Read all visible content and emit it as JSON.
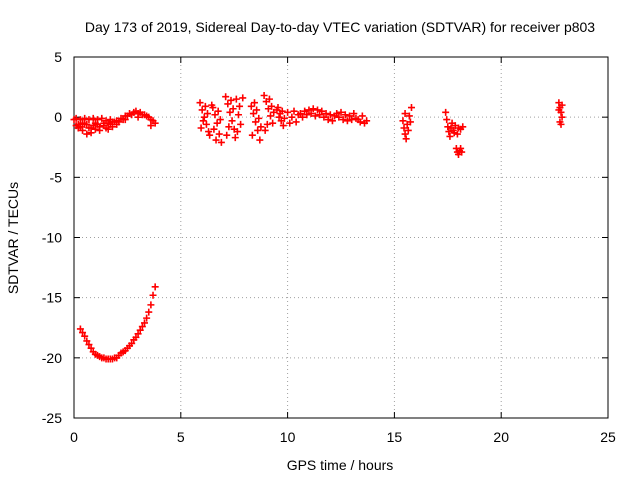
{
  "chart_data": {
    "type": "scatter",
    "title": "Day 173 of 2019, Sidereal Day-to-day VTEC variation (SDTVAR) for receiver p803",
    "xlabel": "GPS time / hours",
    "ylabel": "SDTVAR / TECUs",
    "xlim": [
      0,
      25
    ],
    "ylim": [
      -25,
      5
    ],
    "xticks": [
      0,
      5,
      10,
      15,
      20,
      25
    ],
    "yticks": [
      5,
      0,
      -5,
      -10,
      -15,
      -20,
      -25
    ],
    "grid": true,
    "marker": "plus",
    "series_color": "#ff0000",
    "series": [
      {
        "name": "SDTVAR",
        "points": [
          [
            0.0,
            -0.2
          ],
          [
            0.2,
            -0.6
          ],
          [
            0.4,
            -1.1
          ],
          [
            0.6,
            -1.4
          ],
          [
            0.8,
            -1.3
          ],
          [
            1.0,
            -1.0
          ],
          [
            1.2,
            -0.8
          ],
          [
            1.4,
            -0.7
          ],
          [
            1.6,
            -0.5
          ],
          [
            1.8,
            -0.4
          ],
          [
            2.0,
            -0.3
          ],
          [
            2.2,
            -0.1
          ],
          [
            2.4,
            0.1
          ],
          [
            2.6,
            0.3
          ],
          [
            2.8,
            0.4
          ],
          [
            3.0,
            0.3
          ],
          [
            3.2,
            0.2
          ],
          [
            3.4,
            0.1
          ],
          [
            3.6,
            -0.2
          ],
          [
            3.8,
            -0.5
          ],
          [
            0.1,
            -0.1
          ],
          [
            0.3,
            -0.2
          ],
          [
            0.5,
            -0.1
          ],
          [
            0.7,
            -0.2
          ],
          [
            0.9,
            -0.1
          ],
          [
            1.1,
            -0.2
          ],
          [
            1.3,
            -0.1
          ],
          [
            1.5,
            -0.3
          ],
          [
            1.7,
            -0.2
          ],
          [
            1.9,
            -0.4
          ],
          [
            0.1,
            -0.7
          ],
          [
            0.3,
            -0.8
          ],
          [
            0.5,
            -0.6
          ],
          [
            0.7,
            -0.9
          ],
          [
            0.9,
            -0.7
          ],
          [
            1.1,
            -0.6
          ],
          [
            1.4,
            -0.5
          ],
          [
            1.6,
            -1.0
          ],
          [
            1.8,
            -0.8
          ],
          [
            2.0,
            -0.6
          ],
          [
            2.1,
            -0.4
          ],
          [
            2.3,
            -0.2
          ],
          [
            2.5,
            0.1
          ],
          [
            2.7,
            0.2
          ],
          [
            2.9,
            0.5
          ],
          [
            3.1,
            0.4
          ],
          [
            3.3,
            0.2
          ],
          [
            3.5,
            0.0
          ],
          [
            3.7,
            -0.3
          ],
          [
            3.6,
            -0.7
          ],
          [
            0.2,
            -0.9
          ],
          [
            0.4,
            -0.5
          ],
          [
            0.6,
            -0.6
          ],
          [
            0.8,
            -0.9
          ],
          [
            1.0,
            -0.5
          ],
          [
            1.2,
            -1.1
          ],
          [
            1.5,
            -0.9
          ],
          [
            1.7,
            -0.6
          ],
          [
            2.4,
            -0.2
          ],
          [
            3.0,
            0.0
          ],
          [
            0.3,
            -17.6
          ],
          [
            0.4,
            -17.9
          ],
          [
            0.5,
            -18.2
          ],
          [
            0.6,
            -18.6
          ],
          [
            0.7,
            -18.9
          ],
          [
            0.8,
            -19.2
          ],
          [
            0.9,
            -19.5
          ],
          [
            1.0,
            -19.7
          ],
          [
            1.1,
            -19.8
          ],
          [
            1.2,
            -19.9
          ],
          [
            1.3,
            -20.0
          ],
          [
            1.4,
            -20.0
          ],
          [
            1.5,
            -20.1
          ],
          [
            1.6,
            -20.1
          ],
          [
            1.7,
            -20.1
          ],
          [
            1.8,
            -20.1
          ],
          [
            1.9,
            -20.0
          ],
          [
            2.0,
            -20.0
          ],
          [
            2.1,
            -19.8
          ],
          [
            2.2,
            -19.6
          ],
          [
            2.3,
            -19.5
          ],
          [
            2.4,
            -19.4
          ],
          [
            2.5,
            -19.2
          ],
          [
            2.6,
            -19.0
          ],
          [
            2.7,
            -18.8
          ],
          [
            2.8,
            -18.5
          ],
          [
            2.9,
            -18.3
          ],
          [
            3.0,
            -18.0
          ],
          [
            3.1,
            -17.7
          ],
          [
            3.2,
            -17.4
          ],
          [
            3.3,
            -17.1
          ],
          [
            3.4,
            -16.7
          ],
          [
            3.5,
            -16.2
          ],
          [
            3.6,
            -15.6
          ],
          [
            3.7,
            -14.8
          ],
          [
            3.8,
            -14.1
          ],
          [
            5.9,
            1.2
          ],
          [
            6.0,
            0.6
          ],
          [
            6.1,
            0.0
          ],
          [
            6.2,
            -0.6
          ],
          [
            6.3,
            -1.2
          ],
          [
            5.95,
            -0.9
          ],
          [
            6.05,
            -0.3
          ],
          [
            6.15,
            0.9
          ],
          [
            6.25,
            0.3
          ],
          [
            6.35,
            -1.5
          ],
          [
            6.5,
            0.8
          ],
          [
            6.6,
            0.2
          ],
          [
            6.7,
            -0.5
          ],
          [
            6.8,
            -1.4
          ],
          [
            6.9,
            -2.1
          ],
          [
            6.45,
            1.0
          ],
          [
            6.55,
            -1.0
          ],
          [
            6.65,
            -1.9
          ],
          [
            6.75,
            0.5
          ],
          [
            6.85,
            -0.2
          ],
          [
            7.1,
            1.7
          ],
          [
            7.2,
            1.1
          ],
          [
            7.3,
            0.4
          ],
          [
            7.4,
            -0.3
          ],
          [
            7.5,
            -1.0
          ],
          [
            7.15,
            -1.5
          ],
          [
            7.25,
            -0.8
          ],
          [
            7.35,
            1.4
          ],
          [
            7.45,
            0.7
          ],
          [
            7.55,
            -1.7
          ],
          [
            7.6,
            1.5
          ],
          [
            7.7,
            0.2
          ],
          [
            7.8,
            -0.6
          ],
          [
            7.9,
            1.6
          ],
          [
            7.65,
            -1.2
          ],
          [
            7.75,
            0.9
          ],
          [
            8.3,
            0.9
          ],
          [
            8.4,
            0.3
          ],
          [
            8.5,
            -0.4
          ],
          [
            8.6,
            -1.1
          ],
          [
            8.7,
            -1.9
          ],
          [
            8.35,
            -1.5
          ],
          [
            8.45,
            1.2
          ],
          [
            8.55,
            0.6
          ],
          [
            8.65,
            -0.1
          ],
          [
            8.75,
            -0.8
          ],
          [
            8.9,
            1.8
          ],
          [
            9.0,
            1.3
          ],
          [
            9.1,
            0.7
          ],
          [
            9.2,
            0.1
          ],
          [
            9.3,
            -0.5
          ],
          [
            8.95,
            -1.1
          ],
          [
            9.05,
            -0.6
          ],
          [
            9.15,
            1.5
          ],
          [
            9.25,
            0.9
          ],
          [
            9.35,
            0.4
          ],
          [
            9.5,
            0.6
          ],
          [
            9.6,
            0.0
          ],
          [
            9.7,
            -0.3
          ],
          [
            9.8,
            -0.7
          ],
          [
            9.55,
            0.8
          ],
          [
            9.65,
            0.3
          ],
          [
            9.75,
            0.5
          ],
          [
            9.85,
            -0.1
          ],
          [
            10.0,
            0.4
          ],
          [
            10.2,
            0.0
          ],
          [
            10.4,
            -0.4
          ],
          [
            10.6,
            0.3
          ],
          [
            10.8,
            0.5
          ],
          [
            11.0,
            0.6
          ],
          [
            11.2,
            0.7
          ],
          [
            11.4,
            0.6
          ],
          [
            11.6,
            0.5
          ],
          [
            11.8,
            0.3
          ],
          [
            12.0,
            0.2
          ],
          [
            12.2,
            0.1
          ],
          [
            12.4,
            0.0
          ],
          [
            12.6,
            -0.2
          ],
          [
            12.8,
            -0.3
          ],
          [
            13.0,
            -0.2
          ],
          [
            13.2,
            -0.1
          ],
          [
            13.4,
            -0.4
          ],
          [
            13.6,
            -0.5
          ],
          [
            10.1,
            -0.5
          ],
          [
            10.3,
            0.5
          ],
          [
            10.5,
            0.2
          ],
          [
            10.7,
            0.0
          ],
          [
            10.9,
            0.2
          ],
          [
            11.1,
            0.3
          ],
          [
            11.3,
            0.1
          ],
          [
            11.5,
            0.2
          ],
          [
            11.7,
            0.0
          ],
          [
            11.9,
            -0.2
          ],
          [
            12.1,
            -0.3
          ],
          [
            12.3,
            0.3
          ],
          [
            12.5,
            0.4
          ],
          [
            12.7,
            0.2
          ],
          [
            12.9,
            0.1
          ],
          [
            13.1,
            0.3
          ],
          [
            13.3,
            -0.2
          ],
          [
            13.5,
            0.1
          ],
          [
            13.7,
            -0.3
          ],
          [
            15.4,
            -0.3
          ],
          [
            15.45,
            -0.9
          ],
          [
            15.5,
            -1.4
          ],
          [
            15.55,
            -1.8
          ],
          [
            15.6,
            -0.6
          ],
          [
            15.65,
            -1.1
          ],
          [
            15.7,
            0.1
          ],
          [
            15.75,
            -0.4
          ],
          [
            15.8,
            0.8
          ],
          [
            15.5,
            0.3
          ],
          [
            17.4,
            0.4
          ],
          [
            17.45,
            -0.2
          ],
          [
            17.5,
            -0.8
          ],
          [
            17.55,
            -1.2
          ],
          [
            17.6,
            -1.6
          ],
          [
            17.65,
            -0.9
          ],
          [
            17.7,
            -0.5
          ],
          [
            17.75,
            -1.1
          ],
          [
            17.8,
            -1.3
          ],
          [
            17.85,
            -0.7
          ],
          [
            17.9,
            -2.6
          ],
          [
            17.95,
            -2.9
          ],
          [
            18.0,
            -3.1
          ],
          [
            18.05,
            -2.8
          ],
          [
            18.1,
            -2.6
          ],
          [
            18.15,
            -2.9
          ],
          [
            18.1,
            -1.0
          ],
          [
            18.0,
            -0.9
          ],
          [
            17.95,
            -1.4
          ],
          [
            18.2,
            -0.8
          ],
          [
            22.7,
            1.2
          ],
          [
            22.75,
            0.8
          ],
          [
            22.8,
            0.4
          ],
          [
            22.85,
            0.0
          ],
          [
            22.75,
            -0.4
          ],
          [
            22.8,
            -0.6
          ],
          [
            22.7,
            0.6
          ],
          [
            22.85,
            1.0
          ]
        ]
      }
    ]
  }
}
